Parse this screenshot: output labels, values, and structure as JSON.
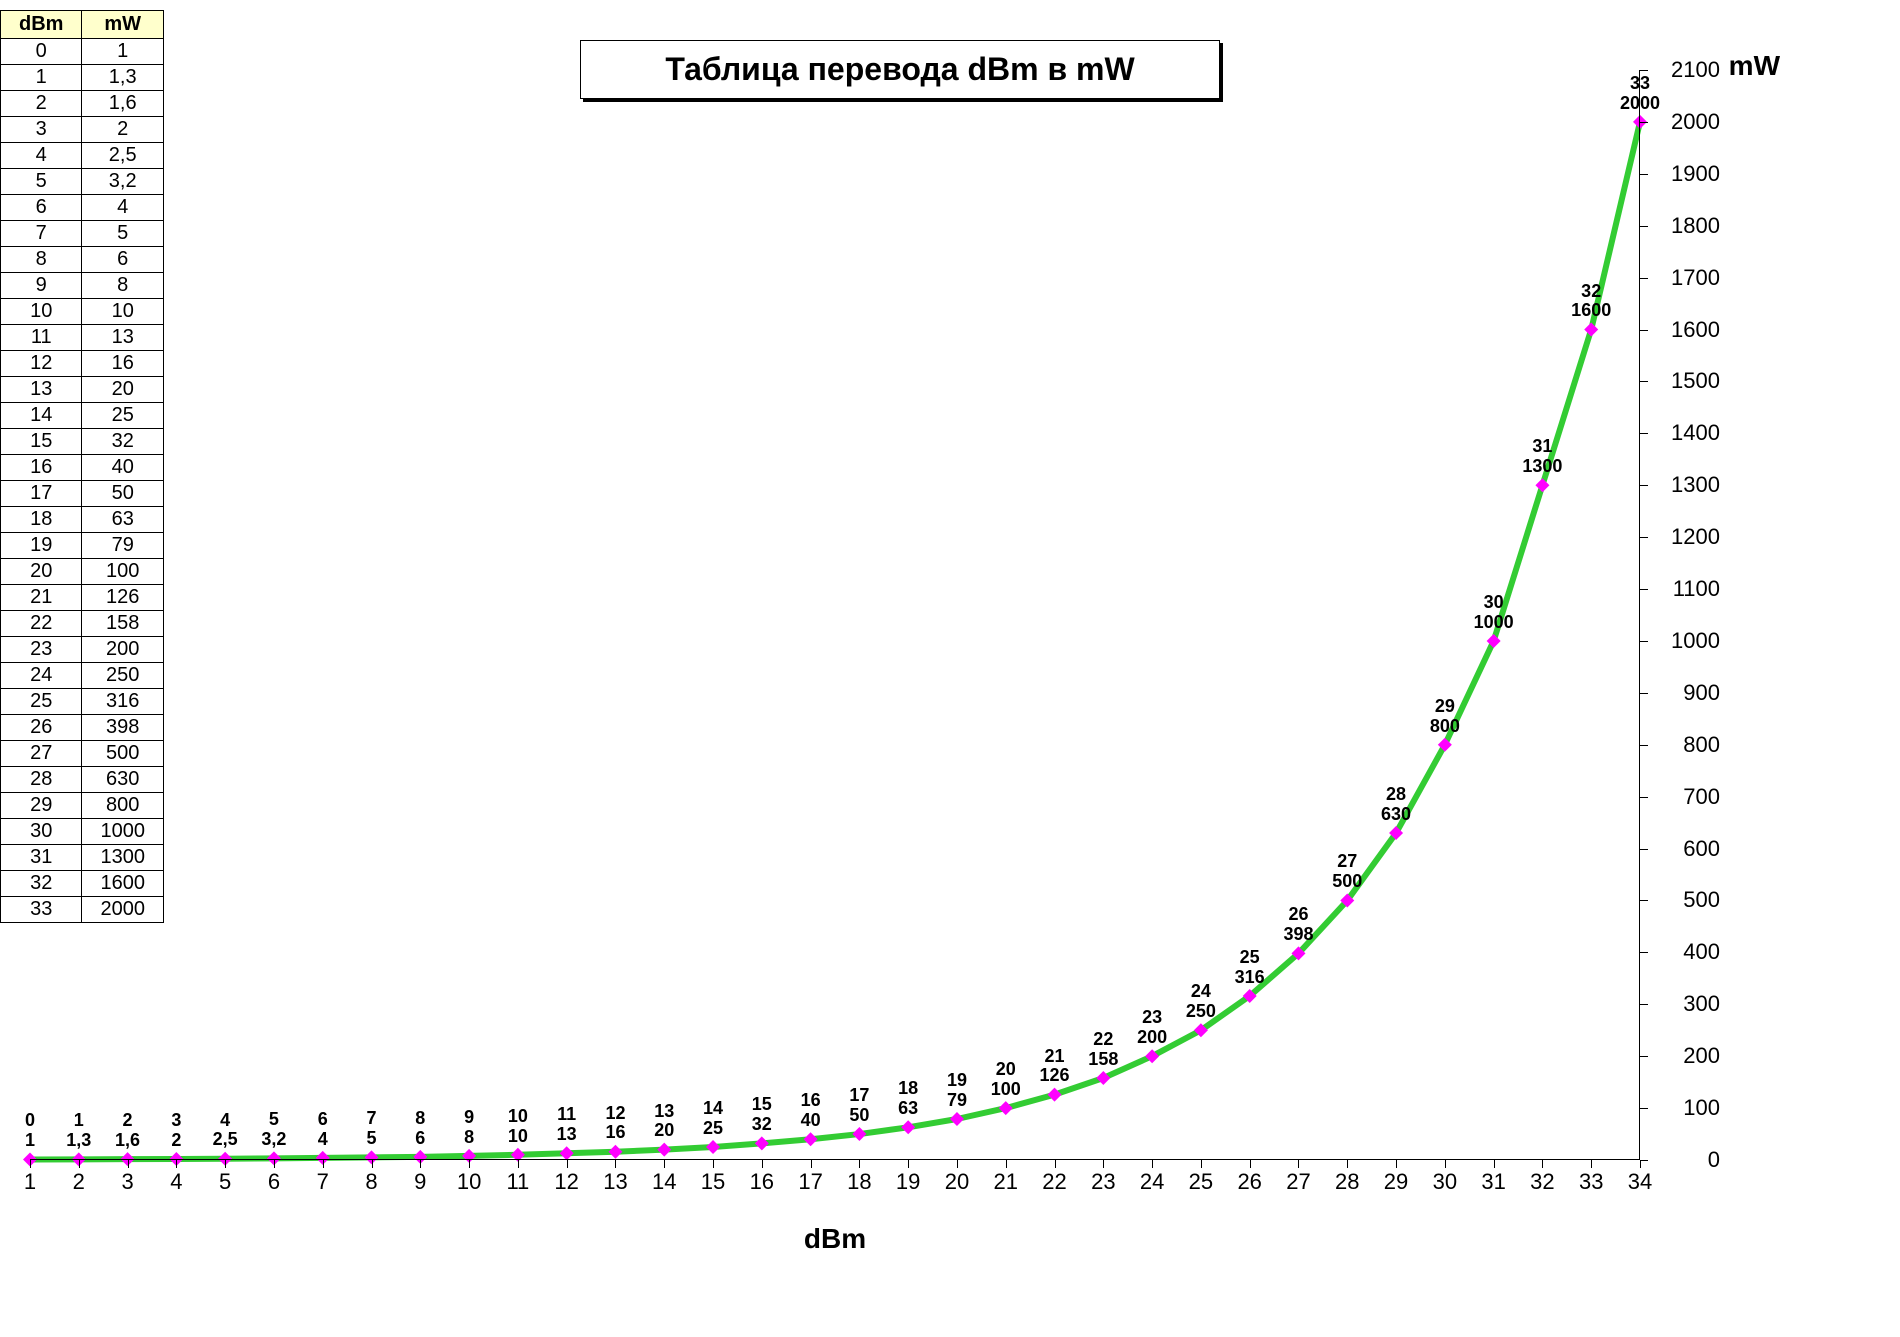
{
  "title": "Таблица перевода dBm в mW",
  "table": {
    "columns": [
      "dBm",
      "mW"
    ],
    "header_bg": "#ffffcc",
    "rows": [
      [
        "0",
        "1"
      ],
      [
        "1",
        "1,3"
      ],
      [
        "2",
        "1,6"
      ],
      [
        "3",
        "2"
      ],
      [
        "4",
        "2,5"
      ],
      [
        "5",
        "3,2"
      ],
      [
        "6",
        "4"
      ],
      [
        "7",
        "5"
      ],
      [
        "8",
        "6"
      ],
      [
        "9",
        "8"
      ],
      [
        "10",
        "10"
      ],
      [
        "11",
        "13"
      ],
      [
        "12",
        "16"
      ],
      [
        "13",
        "20"
      ],
      [
        "14",
        "25"
      ],
      [
        "15",
        "32"
      ],
      [
        "16",
        "40"
      ],
      [
        "17",
        "50"
      ],
      [
        "18",
        "63"
      ],
      [
        "19",
        "79"
      ],
      [
        "20",
        "100"
      ],
      [
        "21",
        "126"
      ],
      [
        "22",
        "158"
      ],
      [
        "23",
        "200"
      ],
      [
        "24",
        "250"
      ],
      [
        "25",
        "316"
      ],
      [
        "26",
        "398"
      ],
      [
        "27",
        "500"
      ],
      [
        "28",
        "630"
      ],
      [
        "29",
        "800"
      ],
      [
        "30",
        "1000"
      ],
      [
        "31",
        "1300"
      ],
      [
        "32",
        "1600"
      ],
      [
        "33",
        "2000"
      ]
    ]
  },
  "chart": {
    "type": "line",
    "xlabel": "dBm",
    "ylabel": "mW",
    "x_values": [
      1,
      2,
      3,
      4,
      5,
      6,
      7,
      8,
      9,
      10,
      11,
      12,
      13,
      14,
      15,
      16,
      17,
      18,
      19,
      20,
      21,
      22,
      23,
      24,
      25,
      26,
      27,
      28,
      29,
      30,
      31,
      32,
      33,
      34
    ],
    "y_values": [
      1,
      1.3,
      1.6,
      2,
      2.5,
      3.2,
      4,
      5,
      6,
      8,
      10,
      13,
      16,
      20,
      25,
      32,
      40,
      50,
      63,
      79,
      100,
      126,
      158,
      200,
      250,
      316,
      398,
      500,
      630,
      800,
      1000,
      1300,
      1600,
      2000
    ],
    "point_labels_top": [
      "0",
      "1",
      "2",
      "3",
      "4",
      "5",
      "6",
      "7",
      "8",
      "9",
      "10",
      "11",
      "12",
      "13",
      "14",
      "15",
      "16",
      "17",
      "18",
      "19",
      "20",
      "21",
      "22",
      "23",
      "24",
      "25",
      "26",
      "27",
      "28",
      "29",
      "30",
      "31",
      "32",
      "33"
    ],
    "point_labels_bottom": [
      "1",
      "1,3",
      "1,6",
      "2",
      "2,5",
      "3,2",
      "4",
      "5",
      "6",
      "8",
      "10",
      "13",
      "16",
      "20",
      "25",
      "32",
      "40",
      "50",
      "63",
      "79",
      "100",
      "126",
      "158",
      "200",
      "250",
      "316",
      "398",
      "500",
      "630",
      "800",
      "1000",
      "1300",
      "1600",
      "2000"
    ],
    "xlim": [
      1,
      34
    ],
    "ylim": [
      0,
      2100
    ],
    "x_ticks": [
      1,
      2,
      3,
      4,
      5,
      6,
      7,
      8,
      9,
      10,
      11,
      12,
      13,
      14,
      15,
      16,
      17,
      18,
      19,
      20,
      21,
      22,
      23,
      24,
      25,
      26,
      27,
      28,
      29,
      30,
      31,
      32,
      33,
      34
    ],
    "y_ticks": [
      0,
      100,
      200,
      300,
      400,
      500,
      600,
      700,
      800,
      900,
      1000,
      1100,
      1200,
      1300,
      1400,
      1500,
      1600,
      1700,
      1800,
      1900,
      2000,
      2100
    ],
    "line_color": "#33cc33",
    "line_width": 6,
    "marker_color": "#ff00ff",
    "marker_size": 14,
    "marker_shape": "diamond",
    "background_color": "#ffffff",
    "label_fontsize": 18,
    "axis_fontsize": 22,
    "title_fontsize": 32
  }
}
